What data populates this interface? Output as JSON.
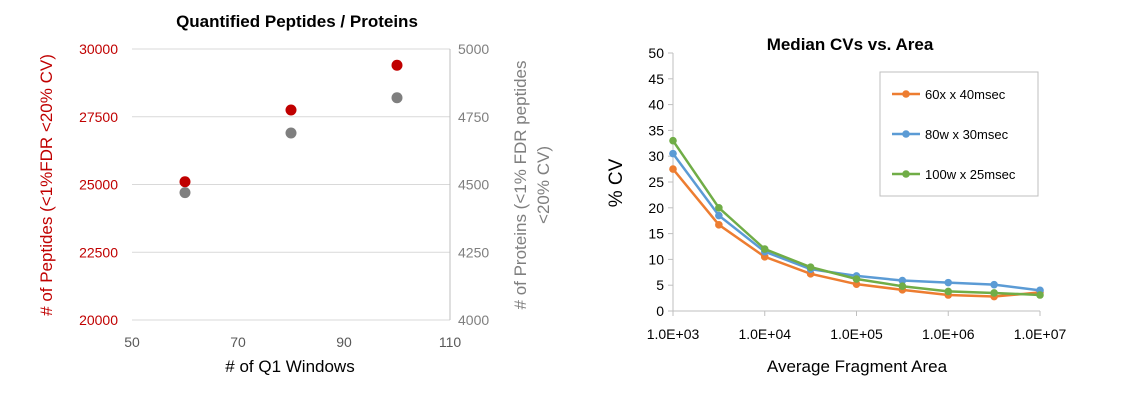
{
  "chart_data": [
    {
      "type": "scatter",
      "title": "Quantified Peptides / Proteins",
      "xlabel": "# of Q1 Windows",
      "ylabel": "# of Peptides (<1%FDR <20% CV)",
      "y2label": "# of Proteins (<1% FDR peptides <20% CV)",
      "xlim": [
        50,
        110
      ],
      "ylim": [
        20000,
        30000
      ],
      "y2lim": [
        4000,
        5000
      ],
      "grid": true,
      "legend": "none",
      "xticks": [
        "50",
        "70",
        "90",
        "110"
      ],
      "yticks": [
        "20000",
        "22500",
        "25000",
        "27500",
        "30000"
      ],
      "y2ticks": [
        "4000",
        "4250",
        "4500",
        "4750",
        "5000"
      ],
      "series": [
        {
          "axis": "left",
          "color": "#c00000",
          "x": [
            60,
            80,
            100
          ],
          "y": [
            25100,
            27750,
            29400
          ]
        },
        {
          "axis": "right",
          "color": "#7f7f7f",
          "x": [
            60,
            80,
            100
          ],
          "y": [
            4470,
            4690,
            4820
          ]
        }
      ],
      "colors": {
        "left_axis": "#c00000",
        "right_axis": "#7f7f7f",
        "grid": "#d9d9d9"
      }
    },
    {
      "type": "line",
      "title": "Median CVs vs. Area",
      "xlabel": "Average Fragment Area",
      "ylabel": "% CV",
      "xscale": "log",
      "xlim": [
        1000,
        10000000
      ],
      "ylim": [
        0,
        50
      ],
      "grid": false,
      "legend": "top-right",
      "xticks": [
        "1.0E+03",
        "1.0E+04",
        "1.0E+05",
        "1.0E+06",
        "1.0E+07"
      ],
      "yticks": [
        "0",
        "5",
        "10",
        "15",
        "20",
        "25",
        "30",
        "35",
        "40",
        "45",
        "50"
      ],
      "x": [
        1000,
        3162,
        10000,
        31623,
        100000,
        316228,
        1000000,
        3162278,
        10000000
      ],
      "series": [
        {
          "name": "60x x 40msec",
          "color": "#ed7d31",
          "values": [
            27.5,
            16.7,
            10.5,
            7.2,
            5.2,
            4.1,
            3.1,
            2.8,
            3.6
          ]
        },
        {
          "name": "80w x 30msec",
          "color": "#5b9bd5",
          "values": [
            30.5,
            18.5,
            11.5,
            8.1,
            6.8,
            5.9,
            5.5,
            5.1,
            4.0
          ]
        },
        {
          "name": "100w x 25msec",
          "color": "#70ad47",
          "values": [
            33.0,
            20.0,
            12.0,
            8.5,
            6.2,
            4.8,
            3.8,
            3.5,
            3.1
          ]
        }
      ]
    }
  ]
}
